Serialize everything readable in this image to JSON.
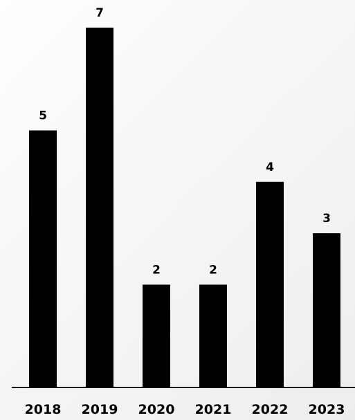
{
  "chart_data": {
    "type": "bar",
    "categories": [
      "2018",
      "2019",
      "2020",
      "2021",
      "2022",
      "2023"
    ],
    "values": [
      5,
      7,
      2,
      2,
      4,
      3
    ],
    "title": "",
    "xlabel": "",
    "ylabel": "",
    "ylim": [
      0,
      7
    ],
    "grid": false,
    "legend": "none",
    "data_labels": [
      "5",
      "7",
      "2",
      "2",
      "4",
      "3"
    ],
    "bar_color": "#000000"
  }
}
